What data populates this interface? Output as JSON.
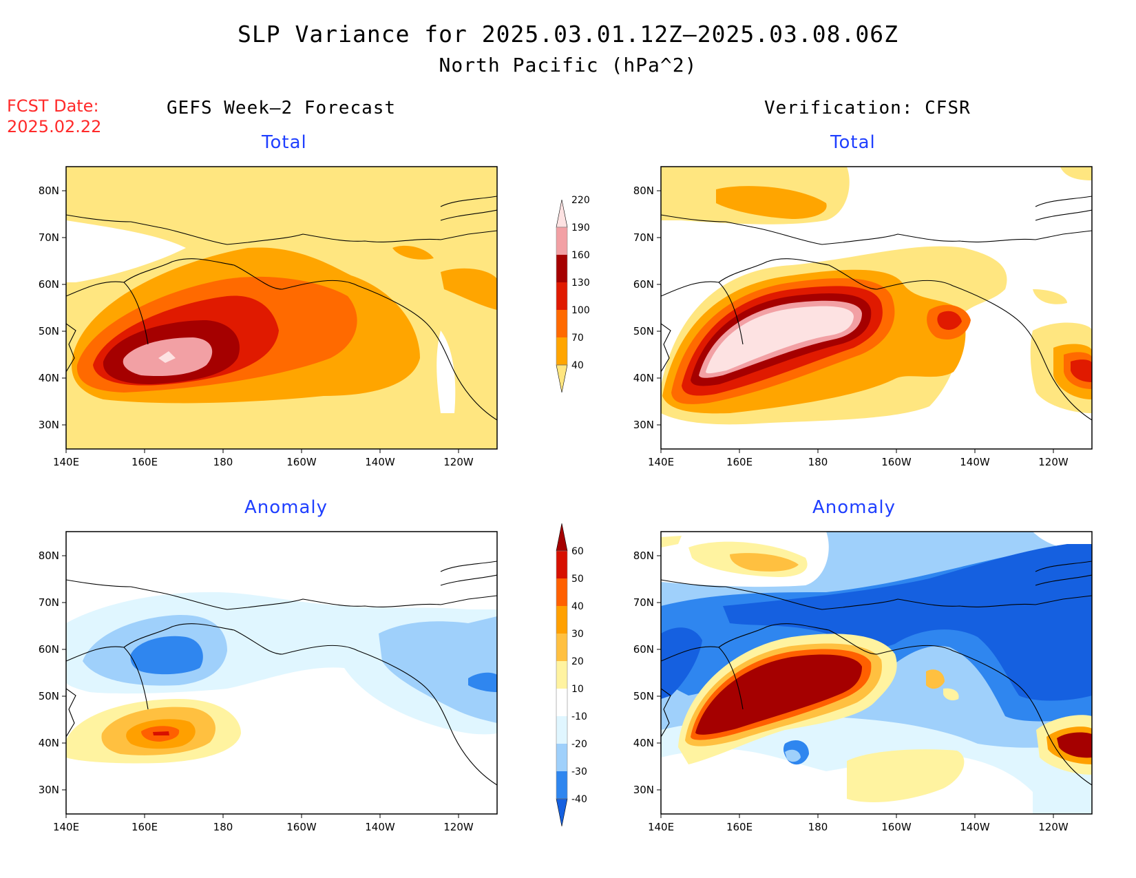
{
  "figure": {
    "title_line1": "SLP Variance for 2025.03.01.12Z–2025.03.08.06Z",
    "title_line2": "North Pacific (hPa^2)",
    "fcst_label": "FCST Date:",
    "fcst_date": "2025.02.22",
    "left_header": "GEFS Week–2 Forecast",
    "right_header": "Verification: CFSR"
  },
  "axes": {
    "lat_labels": [
      "80N",
      "70N",
      "60N",
      "50N",
      "40N",
      "30N"
    ],
    "lon_labels": [
      "140E",
      "160E",
      "180",
      "160W",
      "140W",
      "120W"
    ]
  },
  "panels": [
    {
      "id": "gefs-total",
      "title": "Total"
    },
    {
      "id": "cfsr-total",
      "title": "Total"
    },
    {
      "id": "gefs-anomaly",
      "title": "Anomaly"
    },
    {
      "id": "cfsr-anomaly",
      "title": "Anomaly"
    }
  ],
  "colorbars": {
    "total": {
      "levels": [
        "40",
        "70",
        "100",
        "130",
        "160",
        "190",
        "220"
      ],
      "colors": [
        "#ffe680",
        "#ffa500",
        "#ff6a00",
        "#e01a00",
        "#a50000",
        "#f2a0a4",
        "#fde2e2"
      ]
    },
    "anomaly": {
      "levels": [
        "-40",
        "-30",
        "-20",
        "-10",
        "10",
        "20",
        "30",
        "40",
        "50",
        "60"
      ],
      "colors": [
        "#1560e0",
        "#2f86ef",
        "#9fd0fb",
        "#e0f6ff",
        "#ffffff",
        "#fff3a0",
        "#ffc040",
        "#ffa000",
        "#ff6000",
        "#d71000",
        "#a50000"
      ]
    }
  }
}
